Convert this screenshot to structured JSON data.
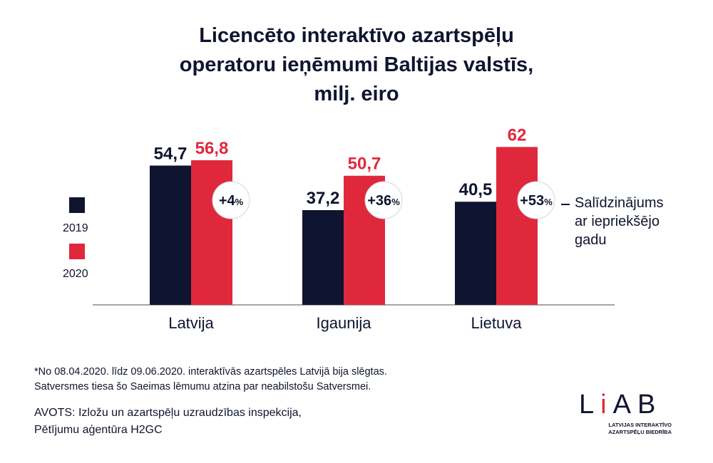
{
  "title_lines": [
    "Licencēto interaktīvo azartspēļu",
    "operatoru ieņēmumi Baltijas valstīs,",
    "milj. eiro"
  ],
  "legend": {
    "2019": "2019",
    "2020": "2020"
  },
  "comparison_note": [
    "Salīdzinājums",
    "ar iepriekšējo",
    "gadu"
  ],
  "footnote": [
    "*No 08.04.2020. līdz 09.06.2020. interaktīvās azartspēles Latvijā bija slēgtas.",
    "Satversmes tiesa šo Saeimas lēmumu atzina par neabilstošu Satversmei."
  ],
  "source": [
    "AVOTS: Izložu un azartspēļu uzraudzības inspekcija,",
    "Pētījumu aģentūra H2GC"
  ],
  "logo": {
    "word_l": "L",
    "word_i": "i",
    "word_ab": "AB",
    "sub": [
      "LATVIJAS INTERAKTĪVO",
      "AZARTSPĒĻU BIEDRĪBA"
    ]
  },
  "colors": {
    "navy": "#0f1430",
    "red": "#e0283d",
    "axis": "#888888"
  },
  "chart_data": {
    "type": "bar",
    "title": "Licencēto interaktīvo azartspēļu operatoru ieņēmumi Baltijas valstīs, milj. eiro",
    "categories": [
      "Latvija",
      "Igaunija",
      "Lietuva"
    ],
    "series": [
      {
        "name": "2019",
        "values": [
          54.7,
          37.2,
          40.5
        ],
        "labels": [
          "54,7",
          "37,2",
          "40,5"
        ],
        "color": "#0f1430"
      },
      {
        "name": "2020",
        "values": [
          56.8,
          50.7,
          62
        ],
        "labels": [
          "56,8",
          "50,7",
          "62"
        ],
        "color": "#e0283d"
      }
    ],
    "changes": [
      {
        "sign": "+",
        "num": "4",
        "pct": "%"
      },
      {
        "sign": "+",
        "num": "36",
        "pct": "%"
      },
      {
        "sign": "+",
        "num": "53",
        "pct": "%"
      }
    ],
    "ylim": [
      0,
      80
    ],
    "grid": false,
    "legend_position": "left"
  }
}
